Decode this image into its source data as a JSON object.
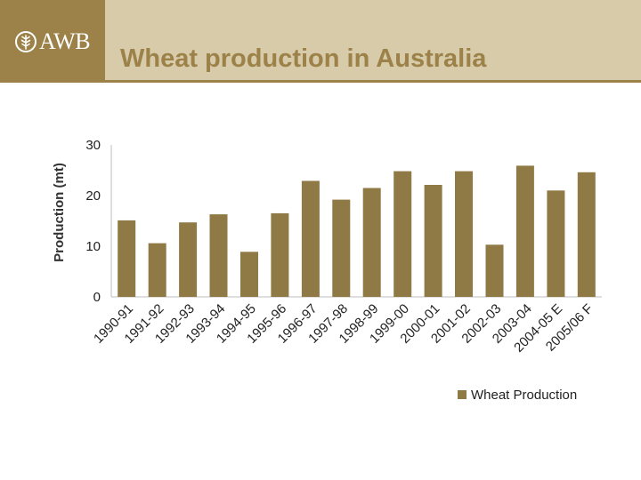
{
  "header": {
    "logo_text": "AWB",
    "logo_icon": "wheat-emblem-icon",
    "title": "Wheat production in Australia"
  },
  "colors": {
    "brand": "#9c8148",
    "title_band": "#d7cbaa",
    "bar": "#8f7a45",
    "axis": "#bfbfbf"
  },
  "chart_data": {
    "type": "bar",
    "title": "Wheat production in Australia",
    "ylabel": "Production (mt)",
    "xlabel": "",
    "ylim": [
      0,
      30
    ],
    "yticks": [
      0,
      10,
      20,
      30
    ],
    "grid": false,
    "legend_position": "bottom-right",
    "categories": [
      "1990-91",
      "1991-92",
      "1992-93",
      "1993-94",
      "1994-95",
      "1995-96",
      "1996-97",
      "1997-98",
      "1998-99",
      "1999-00",
      "2000-01",
      "2001-02",
      "2002-03",
      "2003-04",
      "2004-05 E",
      "2005/06 F"
    ],
    "series": [
      {
        "name": "Wheat Production",
        "values": [
          15.1,
          10.6,
          14.7,
          16.3,
          8.9,
          16.5,
          22.9,
          19.2,
          21.5,
          24.8,
          22.1,
          24.8,
          10.3,
          25.9,
          21.0,
          24.6
        ]
      }
    ]
  }
}
